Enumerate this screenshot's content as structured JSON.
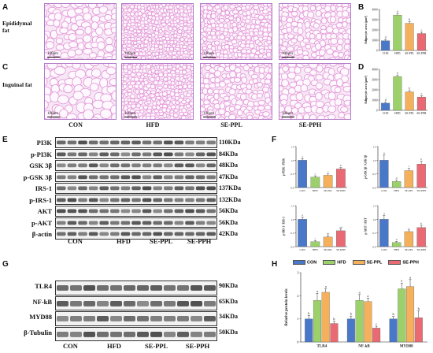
{
  "panels": {
    "A": "A",
    "B": "B",
    "C": "C",
    "D": "D",
    "E": "E",
    "F": "F",
    "G": "G",
    "H": "H"
  },
  "rows": {
    "epididymal": "Epididymal fat",
    "inguinal": "Inguinal fat"
  },
  "scale_bar": "100μm",
  "groups": [
    "CON",
    "HFD",
    "SE-PPL",
    "SE-PPH"
  ],
  "colors": {
    "con": "#4a78c9",
    "hfd": "#9bd06a",
    "sepl": "#f5b05c",
    "seph": "#e96a73",
    "tissue": "#e394d6",
    "tissue_bg": "#f7e8f5"
  },
  "blots_e": [
    {
      "name": "PI3K",
      "kda": "110KDa"
    },
    {
      "name": "p-PI3K",
      "kda": "84KDa"
    },
    {
      "name": "GSK 3β",
      "kda": "48KDa"
    },
    {
      "name": "p-GSK 3β",
      "kda": "47KDa"
    },
    {
      "name": "IRS-1",
      "kda": "137KDa"
    },
    {
      "name": "p-IRS-1",
      "kda": "132KDa"
    },
    {
      "name": "AKT",
      "kda": "56KDa"
    },
    {
      "name": "p-AKT",
      "kda": "56KDa"
    },
    {
      "name": "β-actin",
      "kda": "42KDa"
    }
  ],
  "blots_g": [
    {
      "name": "TLR4",
      "kda": "90KDa"
    },
    {
      "name": "NF-kB",
      "kda": "65KDa"
    },
    {
      "name": "MYD88",
      "kda": "34KDa"
    },
    {
      "name": "β-Tubulin",
      "kda": "50KDa"
    }
  ],
  "legend": [
    "CON",
    "HFD",
    "SE-PPL",
    "SE-PPH"
  ],
  "chart_data": [
    {
      "id": "B",
      "type": "bar",
      "categories": [
        "CON",
        "HFD",
        "SE-PPL",
        "SE-PPH"
      ],
      "values": [
        950,
        3450,
        2650,
        1650
      ],
      "errors": [
        120,
        160,
        150,
        120
      ],
      "letters": [
        "d",
        "a",
        "b",
        "c"
      ],
      "ylabel": "Adipocyte area (μm²)",
      "ylim": [
        0,
        4000
      ],
      "yticks": [
        "0",
        "1000",
        "2000",
        "3000",
        "4000"
      ]
    },
    {
      "id": "D",
      "type": "bar",
      "categories": [
        "CON",
        "HFD",
        "SE-PPL",
        "SE-PPH"
      ],
      "values": [
        700,
        3300,
        1800,
        1300
      ],
      "errors": [
        100,
        150,
        120,
        110
      ],
      "letters": [
        "d",
        "a",
        "b",
        "c"
      ],
      "ylabel": "Adipocyte area (μm²)",
      "ylim": [
        0,
        4000
      ],
      "yticks": [
        "0",
        "1000",
        "2000",
        "3000",
        "4000"
      ]
    },
    {
      "id": "F1",
      "type": "bar",
      "categories": [
        "CON",
        "HFD",
        "SE-PPL",
        "SE-PPH"
      ],
      "values": [
        1.0,
        0.38,
        0.45,
        0.68
      ],
      "errors": [
        0.06,
        0.05,
        0.05,
        0.05
      ],
      "letters": [
        "a",
        "c",
        "c",
        "b"
      ],
      "ylabel": "p-PI3K / PI3K",
      "ylim": [
        0,
        1.5
      ],
      "yticks": [
        "0.0",
        "0.5",
        "1.0",
        "1.5"
      ]
    },
    {
      "id": "F2",
      "type": "bar",
      "categories": [
        "CON",
        "HFD",
        "SE-PPL",
        "SE-PPH"
      ],
      "values": [
        1.0,
        0.22,
        0.62,
        0.86
      ],
      "errors": [
        0.2,
        0.05,
        0.08,
        0.1
      ],
      "letters": [
        "a",
        "d",
        "c",
        "b"
      ],
      "ylabel": "p-GSK 3β / GSK 3β",
      "ylim": [
        0,
        1.5
      ],
      "yticks": [
        "0.0",
        "0.5",
        "1.0",
        "1.5"
      ]
    },
    {
      "id": "F3",
      "type": "bar",
      "categories": [
        "CON",
        "HFD",
        "SE-PPL",
        "SE-PPH"
      ],
      "values": [
        1.0,
        0.18,
        0.35,
        0.58
      ],
      "errors": [
        0.08,
        0.04,
        0.05,
        0.06
      ],
      "letters": [
        "a",
        "c",
        "ab",
        "ab"
      ],
      "ylabel": "p-IRS-1 / IRS-1",
      "ylim": [
        0,
        1.5
      ],
      "yticks": [
        "0.0",
        "0.5",
        "1.0",
        "1.5"
      ]
    },
    {
      "id": "F4",
      "type": "bar",
      "categories": [
        "CON",
        "HFD",
        "SE-PPL",
        "SE-PPH"
      ],
      "values": [
        1.0,
        0.15,
        0.55,
        0.7
      ],
      "errors": [
        0.15,
        0.04,
        0.06,
        0.08
      ],
      "letters": [
        "a",
        "d",
        "c",
        "b"
      ],
      "ylabel": "p-AKT / AKT",
      "ylim": [
        0,
        1.5
      ],
      "yticks": [
        "0.0",
        "0.5",
        "1.0",
        "1.5"
      ]
    },
    {
      "id": "H",
      "type": "bar",
      "categories": [
        "TLR4",
        "NF-kB",
        "MYD88"
      ],
      "series": [
        {
          "name": "CON",
          "values": [
            1.0,
            1.0,
            1.0
          ],
          "errors": [
            0.15,
            0.12,
            0.1
          ],
          "letters": [
            "b",
            "b",
            "b"
          ]
        },
        {
          "name": "HFD",
          "values": [
            1.8,
            1.8,
            2.3
          ],
          "errors": [
            0.3,
            0.25,
            0.25
          ],
          "letters": [
            "a",
            "a",
            "a"
          ]
        },
        {
          "name": "SE-PPL",
          "values": [
            2.15,
            1.75,
            2.4
          ],
          "errors": [
            0.15,
            0.15,
            0.3
          ],
          "letters": [
            "a",
            "a",
            "a"
          ]
        },
        {
          "name": "SE-PPH",
          "values": [
            0.8,
            0.6,
            1.05
          ],
          "errors": [
            0.1,
            0.08,
            0.3
          ],
          "letters": [
            "b",
            "c",
            "b"
          ]
        }
      ],
      "ylabel": "Relative protein levels",
      "ylim": [
        0,
        3
      ],
      "yticks": [
        "0",
        "1",
        "2",
        "3"
      ]
    }
  ]
}
